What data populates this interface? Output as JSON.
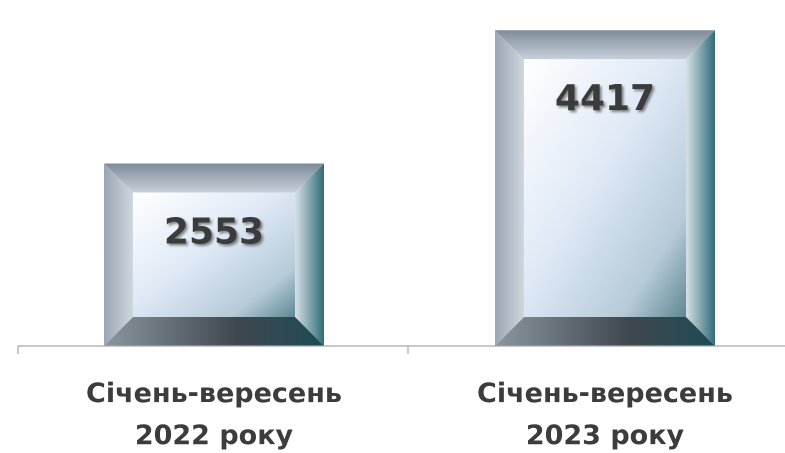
{
  "chart_data": {
    "type": "bar",
    "categories": [
      "Січень-вересень\n2022 року",
      "Січень-вересень\n2023 року"
    ],
    "values": [
      2553,
      4417
    ],
    "data_labels": [
      "2553",
      "4417"
    ],
    "title": "",
    "xlabel": "",
    "ylabel": "",
    "ylim": [
      0,
      4700
    ],
    "grid": false,
    "legend": "none",
    "bar_style": "3D bevel"
  }
}
